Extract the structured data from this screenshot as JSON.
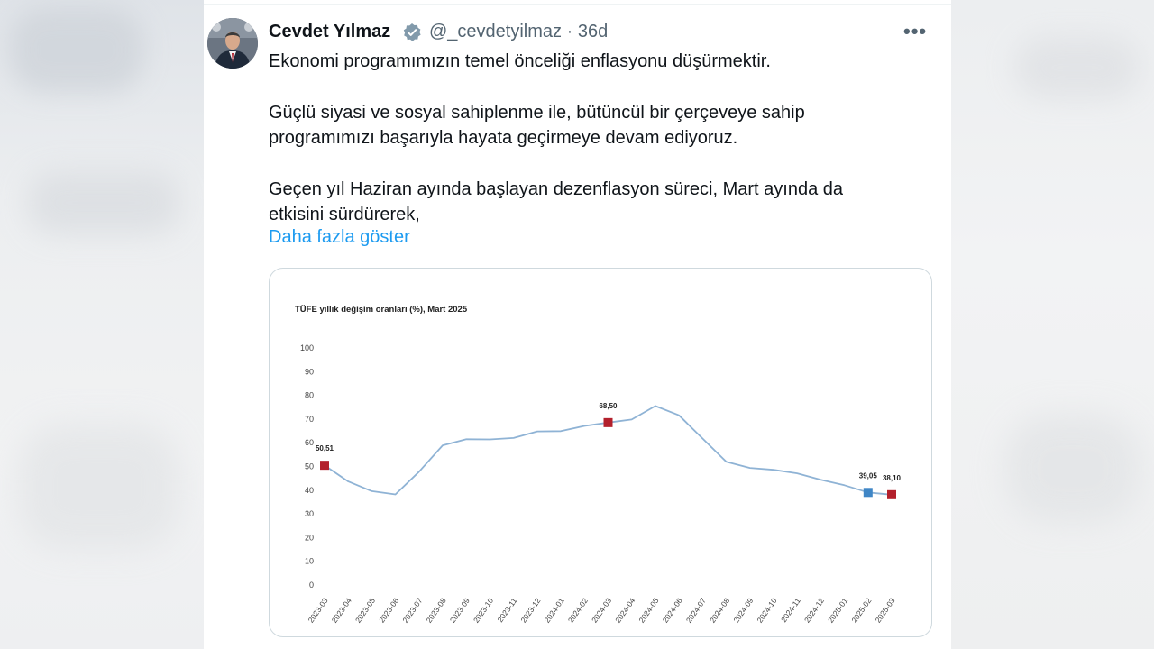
{
  "tweet": {
    "author_name": "Cevdet Yılmaz",
    "handle": "@_cevdetyilmaz",
    "separator": "·",
    "time": "36d",
    "more_icon": "more-horizontal-icon",
    "lines": [
      "Ekonomi programımızın temel önceliği enflasyonu düşürmektir.",
      "Güçlü siyasi ve sosyal sahiplenme ile, bütüncül bir çerçeveye sahip",
      "programımızı başarıyla hayata geçirmeye devam ediyoruz.",
      "Geçen yıl Haziran ayında başlayan dezenflasyon süreci, Mart ayında da",
      "etkisini sürdürerek,"
    ],
    "show_more": "Daha fazla göster"
  },
  "colors": {
    "line": "#8fb3d5",
    "marker_red": "#b3202c",
    "marker_blue": "#3f86c6",
    "link": "#1d9bf0",
    "verified": "#829aab"
  },
  "chart_data": {
    "type": "line",
    "title": "TÜFE yıllık değişim oranları (%), Mart 2025",
    "xlabel": "",
    "ylabel": "",
    "ylim": [
      0,
      100
    ],
    "yticks": [
      0,
      10,
      20,
      30,
      40,
      50,
      60,
      70,
      80,
      90,
      100
    ],
    "grid": false,
    "categories": [
      "2023-03",
      "2023-04",
      "2023-05",
      "2023-06",
      "2023-07",
      "2023-08",
      "2023-09",
      "2023-10",
      "2023-11",
      "2023-12",
      "2024-01",
      "2024-02",
      "2024-03",
      "2024-04",
      "2024-05",
      "2024-06",
      "2024-07",
      "2024-08",
      "2024-09",
      "2024-10",
      "2024-11",
      "2024-12",
      "2025-01",
      "2025-02",
      "2025-03"
    ],
    "values": [
      50.51,
      43.7,
      39.6,
      38.2,
      47.8,
      58.9,
      61.5,
      61.4,
      62.0,
      64.8,
      64.9,
      67.1,
      68.5,
      69.8,
      75.5,
      71.6,
      61.8,
      52.0,
      49.4,
      48.6,
      47.1,
      44.4,
      42.1,
      39.05,
      38.1
    ],
    "highlights": [
      {
        "index": 0,
        "label": "50,51",
        "color": "red"
      },
      {
        "index": 12,
        "label": "68,50",
        "color": "red"
      },
      {
        "index": 23,
        "label": "39,05",
        "color": "blue"
      },
      {
        "index": 24,
        "label": "38,10",
        "color": "red"
      }
    ]
  }
}
